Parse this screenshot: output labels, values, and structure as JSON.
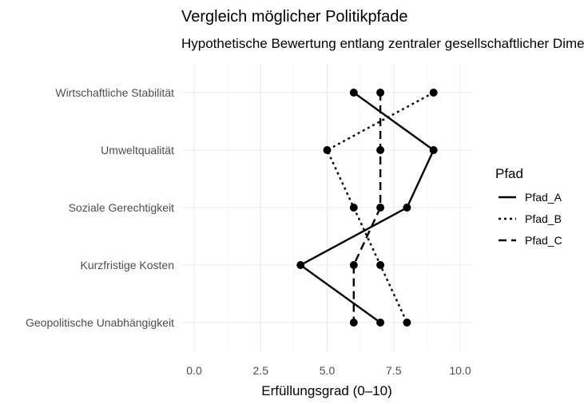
{
  "chart_data": {
    "type": "line",
    "title": "Vergleich möglicher Politikpfade",
    "subtitle": "Hypothetische Bewertung entlang zentraler gesellschaftlicher Dimensionen",
    "xlabel": "Erfüllungsgrad (0–10)",
    "ylabel": "",
    "xlim": [
      0,
      10
    ],
    "x_ticks": [
      "0.0",
      "2.5",
      "5.0",
      "7.5",
      "10.0"
    ],
    "x_tick_values": [
      0,
      2.5,
      5,
      7.5,
      10
    ],
    "categories": [
      "Wirtschaftliche Stabilität",
      "Umweltqualität",
      "Soziale Gerechtigkeit",
      "Kurzfristige Kosten",
      "Geopolitische Unabhängigkeit"
    ],
    "series": [
      {
        "name": "Pfad_A",
        "dash": "solid",
        "values": [
          6,
          9,
          8,
          4,
          7
        ]
      },
      {
        "name": "Pfad_B",
        "dash": "dotted",
        "values": [
          9,
          5,
          6,
          7,
          8
        ]
      },
      {
        "name": "Pfad_C",
        "dash": "dashed",
        "values": [
          7,
          7,
          7,
          6,
          6
        ]
      }
    ],
    "legend": {
      "title": "Pfad",
      "position": "right"
    },
    "grid": true,
    "line_color": "#000000",
    "background": "#ffffff"
  }
}
